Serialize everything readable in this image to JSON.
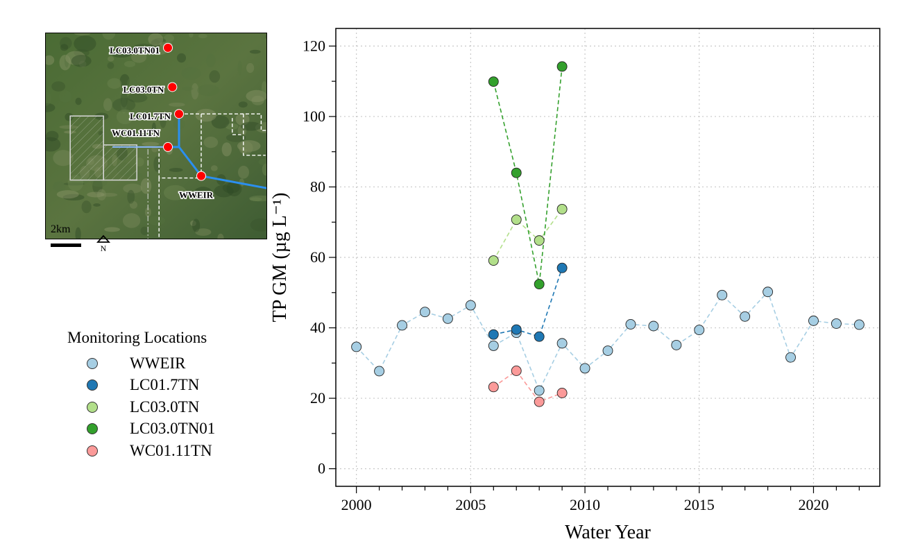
{
  "chart_data": {
    "type": "line",
    "xlabel": "Water Year",
    "ylabel": "TP GM (µg L⁻¹)",
    "xlim": [
      1999.1,
      2022.9
    ],
    "ylim": [
      -5,
      125
    ],
    "x_ticks": [
      2000,
      2005,
      2010,
      2015,
      2020
    ],
    "y_ticks": [
      0,
      20,
      40,
      60,
      80,
      100,
      120
    ],
    "grid": true,
    "legend_position": "left",
    "legend_title": "Monitoring Locations",
    "series": [
      {
        "name": "WWEIR",
        "color": "#a6cee3",
        "points": [
          [
            2000,
            34.6
          ],
          [
            2001,
            27.7
          ],
          [
            2002,
            40.7
          ],
          [
            2003,
            44.5
          ],
          [
            2004,
            42.6
          ],
          [
            2005,
            46.4
          ],
          [
            2006,
            34.9
          ],
          [
            2007,
            38.6
          ],
          [
            2008,
            22.2
          ],
          [
            2009,
            35.6
          ],
          [
            2010,
            28.5
          ],
          [
            2011,
            33.5
          ],
          [
            2012,
            41.0
          ],
          [
            2013,
            40.5
          ],
          [
            2014,
            35.1
          ],
          [
            2015,
            39.4
          ],
          [
            2016,
            49.3
          ],
          [
            2017,
            43.2
          ],
          [
            2018,
            50.2
          ],
          [
            2019,
            31.6
          ],
          [
            2020,
            42.0
          ],
          [
            2021,
            41.2
          ],
          [
            2022,
            40.9
          ]
        ]
      },
      {
        "name": "LC01.7TN",
        "color": "#1f78b4",
        "points": [
          [
            2006,
            38.1
          ],
          [
            2007,
            39.5
          ],
          [
            2008,
            37.5
          ],
          [
            2009,
            57.0
          ]
        ]
      },
      {
        "name": "LC03.0TN",
        "color": "#b2df8a",
        "points": [
          [
            2006,
            59.1
          ],
          [
            2007,
            70.7
          ],
          [
            2008,
            64.8
          ],
          [
            2009,
            73.7
          ]
        ]
      },
      {
        "name": "LC03.0TN01",
        "color": "#33a02c",
        "points": [
          [
            2006,
            109.9
          ],
          [
            2007,
            84.0
          ],
          [
            2008,
            52.4
          ],
          [
            2009,
            114.2
          ]
        ]
      },
      {
        "name": "WC01.11TN",
        "color": "#fb9a99",
        "points": [
          [
            2006,
            23.2
          ],
          [
            2007,
            27.8
          ],
          [
            2008,
            19.0
          ],
          [
            2009,
            21.5
          ]
        ]
      }
    ]
  },
  "map": {
    "scale_label": "2km",
    "north_label": "N",
    "stations": [
      {
        "name": "LC03.0TN01",
        "nx": 0.55,
        "ny": 0.07,
        "lx": 0.17,
        "ly": 0.08,
        "align": "end"
      },
      {
        "name": "LC03.0TN",
        "nx": 0.57,
        "ny": 0.26,
        "lx": 0.15,
        "ly": 0.27,
        "align": "end"
      },
      {
        "name": "LC01.7TN",
        "nx": 0.6,
        "ny": 0.39,
        "lx": 0.18,
        "ly": 0.4,
        "align": "end"
      },
      {
        "name": "WC01.11TN",
        "nx": 0.55,
        "ny": 0.55,
        "lx": 0.23,
        "ly": 0.48,
        "align": "end"
      },
      {
        "name": "WWEIR",
        "nx": 0.7,
        "ny": 0.69,
        "lx": 0.6,
        "ly": 0.78,
        "align": "start"
      }
    ]
  },
  "colors": {
    "station_marker": "#ff0000",
    "canal": "#2b8ff0"
  }
}
